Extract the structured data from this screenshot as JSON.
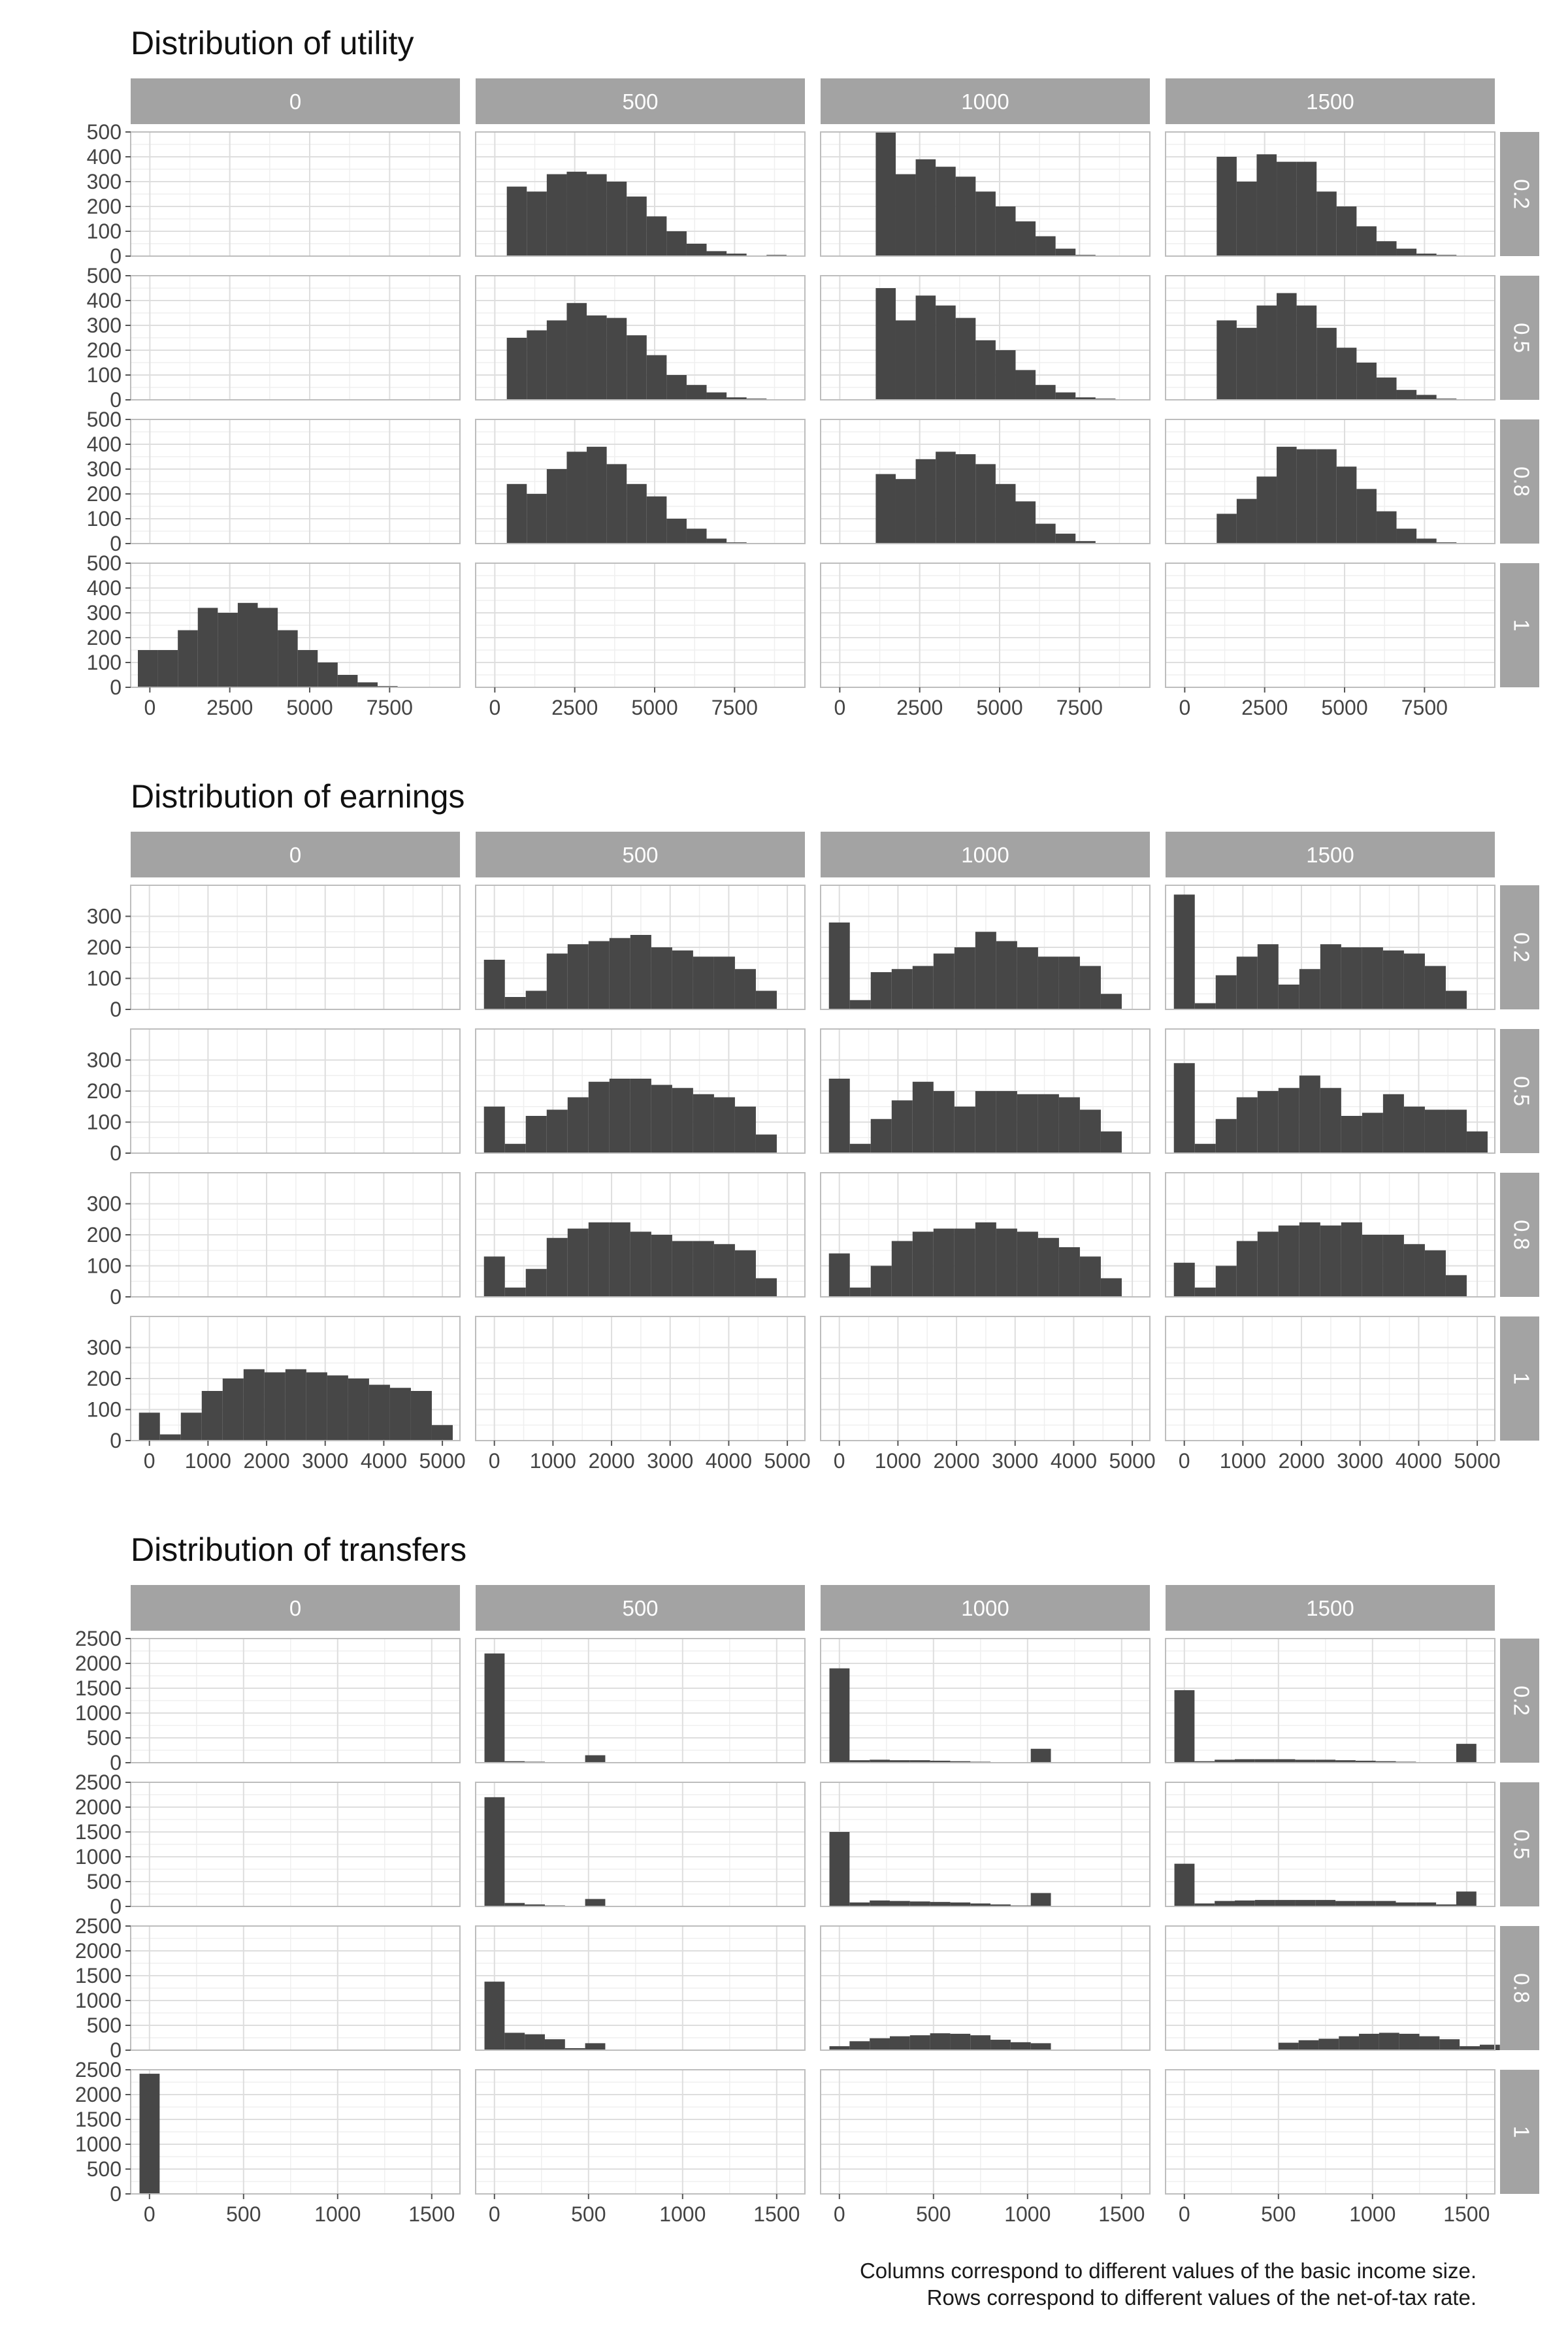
{
  "colors": {
    "bar": "#474747",
    "strip": "#a3a3a3",
    "strip_text": "#ffffff",
    "panel_border": "#bdbdbd",
    "grid_major": "#dedede",
    "grid_minor": "#efefef",
    "axis_text": "#444444",
    "title_text": "#111111"
  },
  "caption": {
    "line1": "Columns correspond to different values of the basic income size.",
    "line2": "Rows correspond to different values of the net-of-tax rate."
  },
  "chart_data": [
    {
      "type": "bar",
      "title": "Distribution of utility",
      "facet_columns": [
        "0",
        "500",
        "1000",
        "1500"
      ],
      "facet_rows": [
        "0.2",
        "0.5",
        "0.8",
        "1"
      ],
      "xlim": [
        -600,
        9700
      ],
      "ylim": [
        0,
        500
      ],
      "x_ticks": [
        0,
        2500,
        5000,
        7500
      ],
      "x_tick_labels": [
        "0",
        "2500",
        "5000",
        "7500"
      ],
      "y_ticks": [
        0,
        100,
        200,
        300,
        400,
        500
      ],
      "y_tick_labels": [
        "0",
        "100",
        "200",
        "300",
        "400",
        "500"
      ],
      "bin_width": 625,
      "panels": [
        {
          "col": "0",
          "row": "0.2",
          "start": null,
          "values": []
        },
        {
          "col": "500",
          "row": "0.2",
          "start": 375,
          "values": [
            280,
            260,
            330,
            340,
            330,
            300,
            240,
            160,
            100,
            50,
            20,
            10,
            0,
            5
          ]
        },
        {
          "col": "1000",
          "row": "0.2",
          "start": 1125,
          "values": [
            510,
            330,
            390,
            360,
            320,
            260,
            200,
            140,
            80,
            30,
            5
          ]
        },
        {
          "col": "1500",
          "row": "0.2",
          "start": 1000,
          "values": [
            400,
            300,
            410,
            380,
            380,
            260,
            200,
            120,
            60,
            30,
            10,
            5
          ]
        },
        {
          "col": "0",
          "row": "0.5",
          "start": null,
          "values": []
        },
        {
          "col": "500",
          "row": "0.5",
          "start": 375,
          "values": [
            250,
            280,
            320,
            390,
            340,
            330,
            260,
            180,
            100,
            60,
            30,
            10,
            5
          ]
        },
        {
          "col": "1000",
          "row": "0.5",
          "start": 1125,
          "values": [
            450,
            320,
            420,
            380,
            330,
            240,
            200,
            120,
            60,
            30,
            10,
            5
          ]
        },
        {
          "col": "1500",
          "row": "0.5",
          "start": 1000,
          "values": [
            320,
            290,
            380,
            430,
            380,
            290,
            210,
            150,
            90,
            40,
            20,
            5
          ]
        },
        {
          "col": "0",
          "row": "0.8",
          "start": null,
          "values": []
        },
        {
          "col": "500",
          "row": "0.8",
          "start": 375,
          "values": [
            240,
            200,
            300,
            370,
            390,
            320,
            240,
            190,
            100,
            60,
            20,
            5
          ]
        },
        {
          "col": "1000",
          "row": "0.8",
          "start": 1125,
          "values": [
            280,
            260,
            340,
            370,
            360,
            320,
            240,
            170,
            80,
            40,
            10
          ]
        },
        {
          "col": "1500",
          "row": "0.8",
          "start": 1000,
          "values": [
            120,
            180,
            270,
            390,
            380,
            380,
            310,
            220,
            130,
            60,
            20,
            5
          ]
        },
        {
          "col": "0",
          "row": "1",
          "start": -375,
          "values": [
            150,
            150,
            230,
            320,
            300,
            340,
            320,
            230,
            150,
            100,
            50,
            20,
            5
          ]
        },
        {
          "col": "500",
          "row": "1",
          "start": null,
          "values": []
        },
        {
          "col": "1000",
          "row": "1",
          "start": null,
          "values": []
        },
        {
          "col": "1500",
          "row": "1",
          "start": null,
          "values": []
        }
      ]
    },
    {
      "type": "bar",
      "title": "Distribution of earnings",
      "facet_columns": [
        "0",
        "500",
        "1000",
        "1500"
      ],
      "facet_rows": [
        "0.2",
        "0.5",
        "0.8",
        "1"
      ],
      "xlim": [
        -320,
        5300
      ],
      "ylim": [
        0,
        400
      ],
      "x_ticks": [
        0,
        1000,
        2000,
        3000,
        4000,
        5000
      ],
      "x_tick_labels": [
        "0",
        "1000",
        "2000",
        "3000",
        "4000",
        "5000"
      ],
      "y_ticks": [
        0,
        100,
        200,
        300
      ],
      "y_tick_labels": [
        "0",
        "100",
        "200",
        "300"
      ],
      "bin_width": 357,
      "panels": [
        {
          "col": "0",
          "row": "0.2",
          "start": null,
          "values": []
        },
        {
          "col": "500",
          "row": "0.2",
          "start": -178,
          "values": [
            160,
            40,
            60,
            180,
            210,
            220,
            230,
            240,
            200,
            190,
            170,
            170,
            130,
            60
          ]
        },
        {
          "col": "1000",
          "row": "0.2",
          "start": -178,
          "values": [
            280,
            30,
            120,
            130,
            140,
            180,
            200,
            250,
            220,
            200,
            170,
            170,
            140,
            50
          ]
        },
        {
          "col": "1500",
          "row": "0.2",
          "start": -178,
          "values": [
            370,
            20,
            110,
            170,
            210,
            80,
            130,
            210,
            200,
            200,
            190,
            180,
            140,
            60
          ]
        },
        {
          "col": "0",
          "row": "0.5",
          "start": null,
          "values": []
        },
        {
          "col": "500",
          "row": "0.5",
          "start": -178,
          "values": [
            150,
            30,
            120,
            140,
            180,
            230,
            240,
            240,
            220,
            210,
            190,
            180,
            150,
            60
          ]
        },
        {
          "col": "1000",
          "row": "0.5",
          "start": -178,
          "values": [
            240,
            30,
            110,
            170,
            230,
            200,
            150,
            200,
            200,
            190,
            190,
            180,
            140,
            70
          ]
        },
        {
          "col": "1500",
          "row": "0.5",
          "start": -178,
          "values": [
            290,
            30,
            110,
            180,
            200,
            210,
            250,
            210,
            120,
            130,
            190,
            150,
            140,
            140,
            70
          ]
        },
        {
          "col": "0",
          "row": "0.8",
          "start": null,
          "values": []
        },
        {
          "col": "500",
          "row": "0.8",
          "start": -178,
          "values": [
            130,
            30,
            90,
            190,
            220,
            240,
            240,
            210,
            200,
            180,
            180,
            170,
            150,
            60
          ]
        },
        {
          "col": "1000",
          "row": "0.8",
          "start": -178,
          "values": [
            140,
            30,
            100,
            180,
            210,
            220,
            220,
            240,
            220,
            210,
            190,
            160,
            130,
            60
          ]
        },
        {
          "col": "1500",
          "row": "0.8",
          "start": -178,
          "values": [
            110,
            30,
            100,
            180,
            210,
            230,
            240,
            230,
            240,
            200,
            200,
            170,
            150,
            70
          ]
        },
        {
          "col": "0",
          "row": "1",
          "start": -178,
          "values": [
            90,
            20,
            90,
            160,
            200,
            230,
            220,
            230,
            220,
            210,
            200,
            180,
            170,
            160,
            50
          ]
        },
        {
          "col": "500",
          "row": "1",
          "start": null,
          "values": []
        },
        {
          "col": "1000",
          "row": "1",
          "start": null,
          "values": []
        },
        {
          "col": "1500",
          "row": "1",
          "start": null,
          "values": []
        }
      ]
    },
    {
      "type": "bar",
      "title": "Distribution of transfers",
      "facet_columns": [
        "0",
        "500",
        "1000",
        "1500"
      ],
      "facet_rows": [
        "0.2",
        "0.5",
        "0.8",
        "1"
      ],
      "xlim": [
        -100,
        1650
      ],
      "ylim": [
        0,
        2500
      ],
      "x_ticks": [
        0,
        500,
        1000,
        1500
      ],
      "x_tick_labels": [
        "0",
        "500",
        "1000",
        "1500"
      ],
      "y_ticks": [
        0,
        500,
        1000,
        1500,
        2000,
        2500
      ],
      "y_tick_labels": [
        "0",
        "500",
        "1000",
        "1500",
        "2000",
        "2500"
      ],
      "bin_width": 107,
      "panels": [
        {
          "col": "0",
          "row": "0.2",
          "start": null,
          "values": []
        },
        {
          "col": "500",
          "row": "0.2",
          "start": -53,
          "values": [
            2200,
            30,
            20,
            10,
            0,
            150
          ]
        },
        {
          "col": "1000",
          "row": "0.2",
          "start": -53,
          "values": [
            1900,
            50,
            60,
            50,
            50,
            40,
            30,
            20,
            10,
            0,
            280
          ]
        },
        {
          "col": "1500",
          "row": "0.2",
          "start": -53,
          "values": [
            1460,
            30,
            60,
            70,
            70,
            70,
            60,
            60,
            50,
            40,
            30,
            20,
            0,
            0,
            380
          ]
        },
        {
          "col": "0",
          "row": "0.5",
          "start": null,
          "values": []
        },
        {
          "col": "500",
          "row": "0.5",
          "start": -53,
          "values": [
            2200,
            70,
            40,
            20,
            0,
            150
          ]
        },
        {
          "col": "1000",
          "row": "0.5",
          "start": -53,
          "values": [
            1500,
            80,
            120,
            110,
            100,
            90,
            80,
            60,
            40,
            20,
            270
          ]
        },
        {
          "col": "1500",
          "row": "0.5",
          "start": -53,
          "values": [
            860,
            60,
            110,
            120,
            130,
            130,
            130,
            130,
            110,
            110,
            110,
            80,
            80,
            40,
            300
          ]
        },
        {
          "col": "0",
          "row": "0.8",
          "start": null,
          "values": []
        },
        {
          "col": "500",
          "row": "0.8",
          "start": -53,
          "values": [
            1380,
            350,
            320,
            220,
            40,
            140
          ]
        },
        {
          "col": "1000",
          "row": "0.8",
          "start": -53,
          "values": [
            80,
            180,
            240,
            280,
            300,
            340,
            330,
            300,
            210,
            160,
            140
          ]
        },
        {
          "col": "1500",
          "row": "0.8",
          "start": 500,
          "values": [
            150,
            200,
            230,
            280,
            330,
            350,
            330,
            280,
            220,
            80,
            110
          ]
        },
        {
          "col": "0",
          "row": "1",
          "start": -53,
          "values": [
            2420
          ]
        },
        {
          "col": "500",
          "row": "1",
          "start": null,
          "values": []
        },
        {
          "col": "1000",
          "row": "1",
          "start": null,
          "values": []
        },
        {
          "col": "1500",
          "row": "1",
          "start": null,
          "values": []
        }
      ]
    }
  ]
}
